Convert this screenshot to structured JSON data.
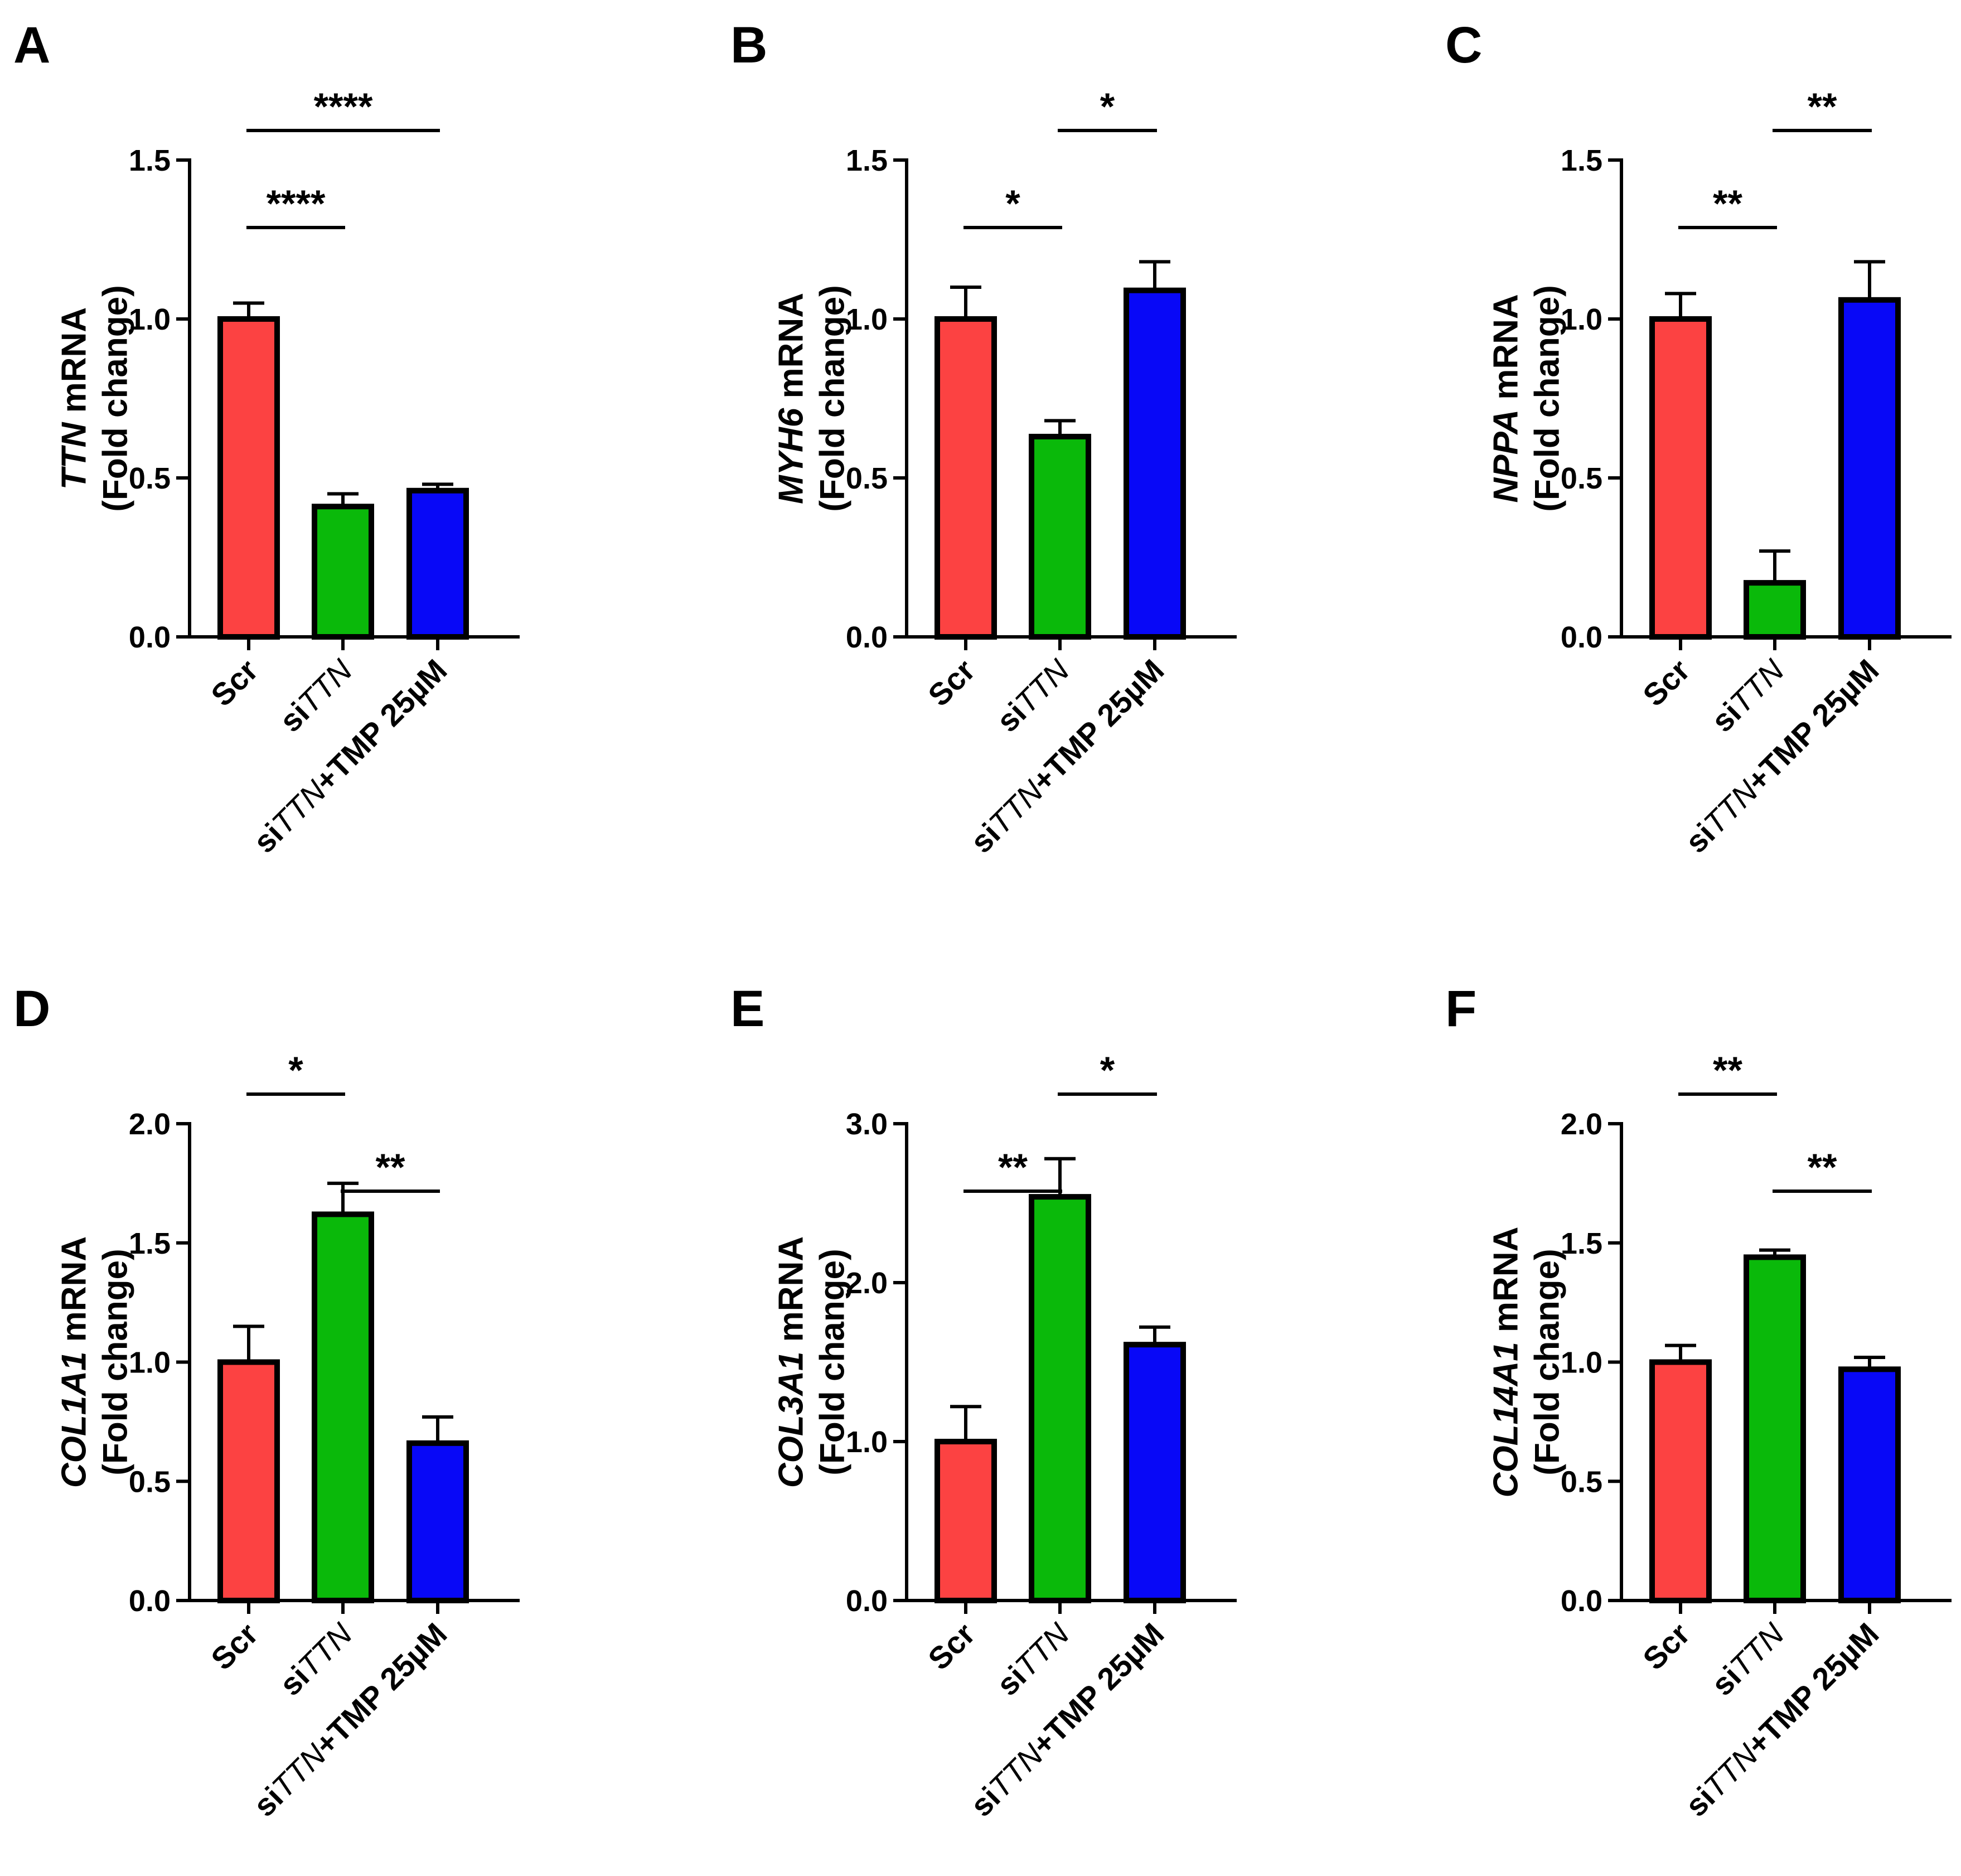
{
  "colors": {
    "scr": "#fc4242",
    "sittn": "#0ab90a",
    "tmp": "#0808f7",
    "axis": "#000000"
  },
  "chart_data": [
    {
      "panel": "A",
      "type": "bar",
      "categories": [
        [
          "Scr"
        ],
        [
          "si",
          {
            "i": "TTN"
          }
        ],
        [
          "si",
          {
            "i": "TTN"
          },
          "+TMP 25µM"
        ]
      ],
      "values": [
        1.0,
        0.41,
        0.46
      ],
      "errors": [
        0.05,
        0.04,
        0.02
      ],
      "ylabel": {
        "italic": "TTN",
        "rest": " mRNA",
        "line2": "(Fold change)"
      },
      "ylim": [
        0,
        1.5
      ],
      "ticks": [
        "0.0",
        "0.5",
        "1.0",
        "1.5"
      ],
      "significance": [
        {
          "from": 0,
          "to": 1,
          "label": "****",
          "level": 0
        },
        {
          "from": 0,
          "to": 2,
          "label": "****",
          "level": 1
        }
      ]
    },
    {
      "panel": "B",
      "type": "bar",
      "categories": [
        [
          "Scr"
        ],
        [
          "si",
          {
            "i": "TTN"
          }
        ],
        [
          "si",
          {
            "i": "TTN"
          },
          "+TMP 25µM"
        ]
      ],
      "values": [
        1.0,
        0.63,
        1.09
      ],
      "errors": [
        0.1,
        0.05,
        0.09
      ],
      "ylabel": {
        "italic": "MYH6",
        "rest": " mRNA",
        "line2": "(Fold change)"
      },
      "ylim": [
        0,
        1.5
      ],
      "ticks": [
        "0.0",
        "0.5",
        "1.0",
        "1.5"
      ],
      "significance": [
        {
          "from": 0,
          "to": 1,
          "label": "*",
          "level": 0
        },
        {
          "from": 1,
          "to": 2,
          "label": "*",
          "level": 1
        }
      ]
    },
    {
      "panel": "C",
      "type": "bar",
      "categories": [
        [
          "Scr"
        ],
        [
          "si",
          {
            "i": "TTN"
          }
        ],
        [
          "si",
          {
            "i": "TTN"
          },
          "+TMP 25µM"
        ]
      ],
      "values": [
        1.0,
        0.17,
        1.06
      ],
      "errors": [
        0.08,
        0.1,
        0.12
      ],
      "ylabel": {
        "italic": "NPPA",
        "rest": " mRNA",
        "line2": "(Fold change)"
      },
      "ylim": [
        0,
        1.5
      ],
      "ticks": [
        "0.0",
        "0.5",
        "1.0",
        "1.5"
      ],
      "significance": [
        {
          "from": 0,
          "to": 1,
          "label": "**",
          "level": 0
        },
        {
          "from": 1,
          "to": 2,
          "label": "**",
          "level": 1
        }
      ]
    },
    {
      "panel": "D",
      "type": "bar",
      "categories": [
        [
          "Scr"
        ],
        [
          "si",
          {
            "i": "TTN"
          }
        ],
        [
          "si",
          {
            "i": "TTN"
          },
          "+TMP 25µM"
        ]
      ],
      "values": [
        1.0,
        1.62,
        0.66
      ],
      "errors": [
        0.15,
        0.13,
        0.11
      ],
      "ylabel": {
        "italic": "COL1A1",
        "rest": " mRNA",
        "line2": "(Fold change)"
      },
      "ylim": [
        0,
        2.0
      ],
      "ticks": [
        "0.0",
        "0.5",
        "1.0",
        "1.5",
        "2.0"
      ],
      "significance": [
        {
          "from": 0,
          "to": 1,
          "label": "*",
          "level": 1
        },
        {
          "from": 1,
          "to": 2,
          "label": "**",
          "level": 0
        }
      ]
    },
    {
      "panel": "E",
      "type": "bar",
      "categories": [
        [
          "Scr"
        ],
        [
          "si",
          {
            "i": "TTN"
          }
        ],
        [
          "si",
          {
            "i": "TTN"
          },
          "+TMP 25µM"
        ]
      ],
      "values": [
        1.0,
        2.54,
        1.61
      ],
      "errors": [
        0.22,
        0.24,
        0.11
      ],
      "ylabel": {
        "italic": "COL3A1",
        "rest": " mRNA",
        "line2": "(Fold change)"
      },
      "ylim": [
        0,
        3.0
      ],
      "ticks": [
        "0.0",
        "1.0",
        "2.0",
        "3.0"
      ],
      "significance": [
        {
          "from": 0,
          "to": 1,
          "label": "**",
          "level": 0
        },
        {
          "from": 1,
          "to": 2,
          "label": "*",
          "level": 1
        }
      ]
    },
    {
      "panel": "F",
      "type": "bar",
      "categories": [
        [
          "Scr"
        ],
        [
          "si",
          {
            "i": "TTN"
          }
        ],
        [
          "si",
          {
            "i": "TTN"
          },
          "+TMP 25µM"
        ]
      ],
      "values": [
        1.0,
        1.44,
        0.97
      ],
      "errors": [
        0.07,
        0.03,
        0.05
      ],
      "ylabel": {
        "italic": "COL14A1",
        "rest": " mRNA",
        "line2": "(Fold change)"
      },
      "ylim": [
        0,
        2.0
      ],
      "ticks": [
        "0.0",
        "0.5",
        "1.0",
        "1.5",
        "2.0"
      ],
      "significance": [
        {
          "from": 0,
          "to": 1,
          "label": "**",
          "level": 1
        },
        {
          "from": 1,
          "to": 2,
          "label": "**",
          "level": 0
        }
      ]
    }
  ]
}
